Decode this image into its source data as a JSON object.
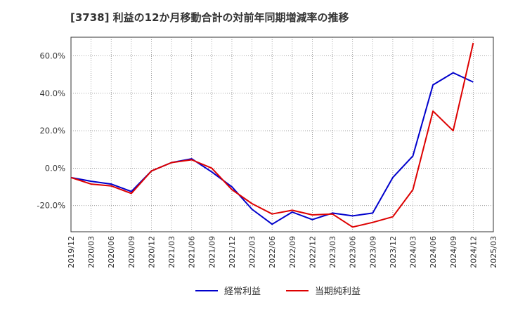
{
  "chart_data": {
    "type": "line",
    "title": "[3738]  利益の12か月移動合計の対前年同期増減率の推移",
    "xlabel": "",
    "ylabel": "",
    "ylim": [
      -34,
      70
    ],
    "y_ticks": [
      60,
      40,
      20,
      0,
      -20
    ],
    "y_tick_labels": [
      "60.0%",
      "40.0%",
      "20.0%",
      "0.0%",
      "-20.0%"
    ],
    "x": [
      "2019/12",
      "2020/03",
      "2020/06",
      "2020/09",
      "2020/12",
      "2021/03",
      "2021/06",
      "2021/09",
      "2021/12",
      "2022/03",
      "2022/06",
      "2022/09",
      "2022/12",
      "2023/03",
      "2023/06",
      "2023/09",
      "2023/12",
      "2024/03",
      "2024/06",
      "2024/09",
      "2024/12",
      "2025/03"
    ],
    "grid": true,
    "legend_position": "bottom",
    "series": [
      {
        "name": "経常利益",
        "color": "#0000cc",
        "values": [
          -5.0,
          -7.0,
          -8.5,
          -12.5,
          -1.5,
          3.0,
          5.0,
          -2.0,
          -10.0,
          -22.0,
          -30.0,
          -23.5,
          -27.5,
          -24.0,
          -25.5,
          -24.0,
          -5.0,
          6.5,
          44.5,
          51.0,
          46.0,
          null
        ]
      },
      {
        "name": "当期純利益",
        "color": "#dd0000",
        "values": [
          -5.0,
          -8.5,
          -9.5,
          -13.5,
          -1.5,
          3.0,
          4.5,
          0.0,
          -11.5,
          -19.0,
          -24.5,
          -22.5,
          -25.0,
          -24.5,
          -31.5,
          -29.0,
          -26.0,
          -11.5,
          30.5,
          20.0,
          67.0,
          null
        ]
      }
    ]
  }
}
